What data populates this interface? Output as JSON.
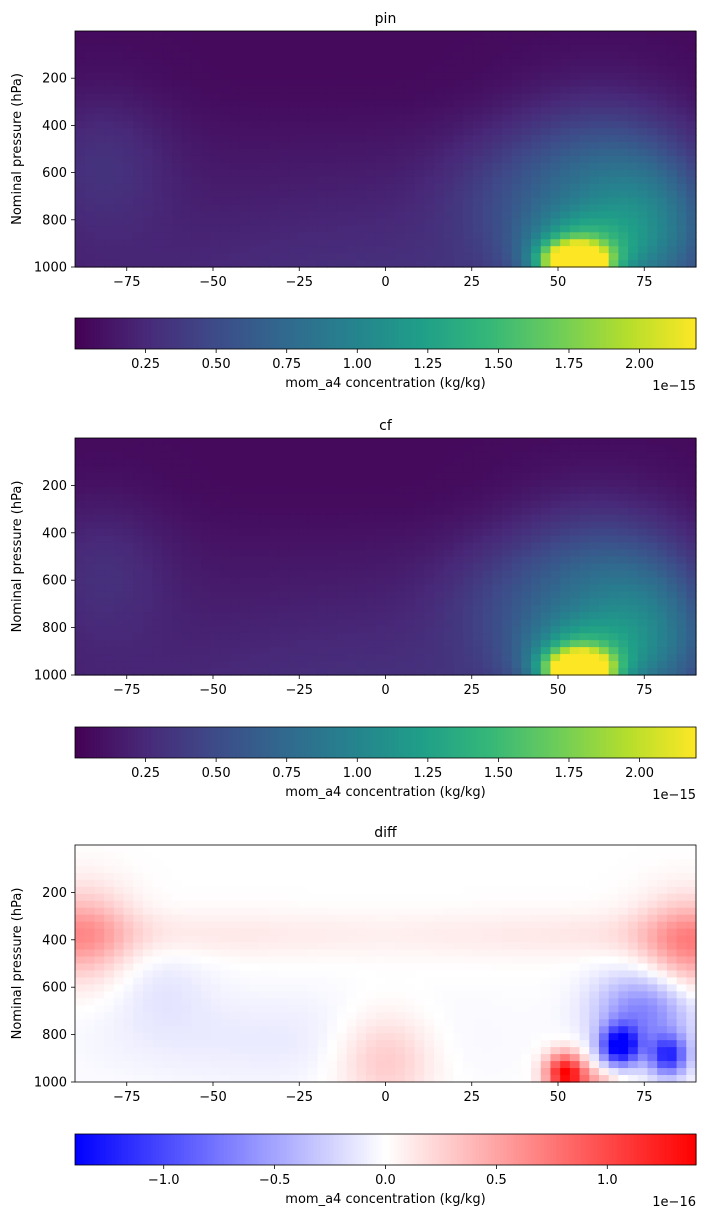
{
  "chart_data": [
    {
      "type": "heatmap",
      "title": "pin",
      "xlabel": "",
      "ylabel": "Nominal pressure (hPa)",
      "xlim": [
        -90,
        90
      ],
      "ylim": [
        1000,
        0
      ],
      "xticks": [
        -75,
        -50,
        -25,
        0,
        25,
        50,
        75
      ],
      "xtick_labels": [
        "−75",
        "−50",
        "−25",
        "0",
        "25",
        "50",
        "75"
      ],
      "yticks": [
        200,
        400,
        600,
        800,
        1000
      ],
      "ytick_labels": [
        "200",
        "400",
        "600",
        "800",
        "1000"
      ],
      "colormap": "viridis",
      "hotspots": [
        {
          "lat": 55,
          "p": 980,
          "value": 2.2e-15
        },
        {
          "lat": 78,
          "p": 850,
          "value": 9e-16
        },
        {
          "lat": -82,
          "p": 550,
          "value": 2e-16
        }
      ],
      "colorbar": {
        "label": "mom_a4 concentration (kg/kg)",
        "min": 0,
        "max": 2.2,
        "ticks": [
          0.25,
          0.5,
          0.75,
          1.0,
          1.25,
          1.5,
          1.75,
          2.0
        ],
        "tick_labels": [
          "0.25",
          "0.50",
          "0.75",
          "1.00",
          "1.25",
          "1.50",
          "1.75",
          "2.00"
        ],
        "scale_label": "1e−15",
        "colormap": "viridis"
      }
    },
    {
      "type": "heatmap",
      "title": "cf",
      "xlabel": "",
      "ylabel": "Nominal pressure (hPa)",
      "xlim": [
        -90,
        90
      ],
      "ylim": [
        1000,
        0
      ],
      "xticks": [
        -75,
        -50,
        -25,
        0,
        25,
        50,
        75
      ],
      "xtick_labels": [
        "−75",
        "−50",
        "−25",
        "0",
        "25",
        "50",
        "75"
      ],
      "yticks": [
        200,
        400,
        600,
        800,
        1000
      ],
      "ytick_labels": [
        "200",
        "400",
        "600",
        "800",
        "1000"
      ],
      "colormap": "viridis",
      "hotspots": [
        {
          "lat": 56,
          "p": 980,
          "value": 2.2e-15
        },
        {
          "lat": 78,
          "p": 850,
          "value": 8.5e-16
        },
        {
          "lat": -82,
          "p": 550,
          "value": 1.8e-16
        }
      ],
      "colorbar": {
        "label": "mom_a4 concentration (kg/kg)",
        "min": 0,
        "max": 2.2,
        "ticks": [
          0.25,
          0.5,
          0.75,
          1.0,
          1.25,
          1.5,
          1.75,
          2.0
        ],
        "tick_labels": [
          "0.25",
          "0.50",
          "0.75",
          "1.00",
          "1.25",
          "1.50",
          "1.75",
          "2.00"
        ],
        "scale_label": "1e−15",
        "colormap": "viridis"
      }
    },
    {
      "type": "heatmap",
      "title": "diff",
      "xlabel": "",
      "ylabel": "Nominal pressure (hPa)",
      "xlim": [
        -90,
        90
      ],
      "ylim": [
        1000,
        0
      ],
      "xticks": [
        -75,
        -50,
        -25,
        0,
        25,
        50,
        75
      ],
      "xtick_labels": [
        "−75",
        "−50",
        "−25",
        "0",
        "25",
        "50",
        "75"
      ],
      "yticks": [
        200,
        400,
        600,
        800,
        1000
      ],
      "ytick_labels": [
        "200",
        "400",
        "600",
        "800",
        "1000"
      ],
      "colormap": "bwr",
      "features": [
        {
          "lat": 52,
          "p": 960,
          "value": 1.3e-16
        },
        {
          "lat": 68,
          "p": 850,
          "value": -1.4e-16
        },
        {
          "lat": 82,
          "p": 890,
          "value": -1.1e-16
        },
        {
          "lat": -88,
          "p": 380,
          "value": 5e-17
        },
        {
          "lat": 88,
          "p": 430,
          "value": 6e-17
        },
        {
          "lat": 0,
          "p": 900,
          "value": 3.5e-17
        },
        {
          "lat": -65,
          "p": 600,
          "value": -1.2e-17
        }
      ],
      "colorbar": {
        "label": "mom_a4 concentration (kg/kg)",
        "min": -1.4,
        "max": 1.4,
        "ticks": [
          -1.0,
          -0.5,
          0.0,
          0.5,
          1.0
        ],
        "tick_labels": [
          "−1.0",
          "−0.5",
          "0.0",
          "0.5",
          "1.0"
        ],
        "scale_label": "1e−16",
        "colormap": "bwr"
      }
    }
  ]
}
